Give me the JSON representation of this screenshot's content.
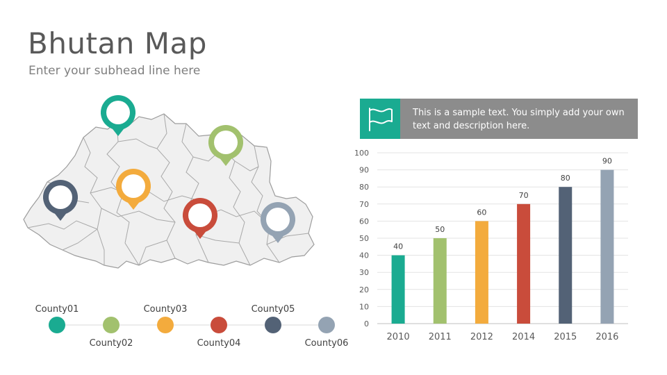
{
  "header": {
    "title": "Bhutan Map",
    "subtitle": "Enter your subhead line here"
  },
  "colors": {
    "teal": "#1aab91",
    "green": "#a2c16e",
    "orange": "#f3ab3d",
    "red": "#c94c3b",
    "slate": "#536276",
    "gray": "#94a3b3",
    "banner": "#8c8c8c"
  },
  "legend": {
    "items": [
      {
        "label": "County01",
        "color": "#1aab91"
      },
      {
        "label": "County02",
        "color": "#a2c16e"
      },
      {
        "label": "County03",
        "color": "#f3ab3d"
      },
      {
        "label": "County04",
        "color": "#c94c3b"
      },
      {
        "label": "County05",
        "color": "#536276"
      },
      {
        "label": "County06",
        "color": "#94a3b3"
      }
    ]
  },
  "callout": {
    "text": "This is a sample text. You simply add your own text and description here.",
    "icon": "flag-icon"
  },
  "chart_data": {
    "type": "bar",
    "categories": [
      "2010",
      "2011",
      "2012",
      "2014",
      "2015",
      "2016"
    ],
    "values": [
      40,
      50,
      60,
      70,
      80,
      90
    ],
    "colors": [
      "#1aab91",
      "#a2c16e",
      "#f3ab3d",
      "#c94c3b",
      "#536276",
      "#94a3b3"
    ],
    "ylim": [
      0,
      100
    ],
    "yticks": [
      0,
      10,
      20,
      30,
      40,
      50,
      60,
      70,
      80,
      90,
      100
    ],
    "grid": true,
    "data_labels": true,
    "title": "",
    "xlabel": "",
    "ylabel": ""
  }
}
